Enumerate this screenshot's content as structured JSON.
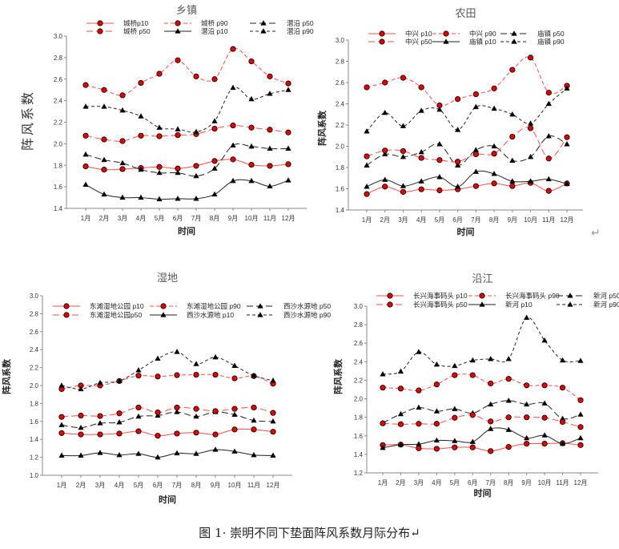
{
  "caption": "图 1· 崇明不同下垫面阵风系数月际分布↵",
  "colors": {
    "site_a": "#ff4d4d",
    "marker_a": "#e00000",
    "site_b": "#222222"
  },
  "chart_data": [
    {
      "type": "line",
      "title": "乡镇",
      "xlabel": "时间",
      "ylabel": "阵风系数",
      "categories": [
        "1月",
        "2月",
        "3月",
        "4月",
        "5月",
        "6月",
        "7月",
        "8月",
        "9月",
        "10月",
        "11月",
        "12月"
      ],
      "ylim": [
        1.4,
        3.0
      ],
      "yticks": [
        "1.4",
        "1.6",
        "1.8",
        "2.0",
        "2.2",
        "2.4",
        "2.6",
        "2.8",
        "3.0"
      ],
      "grid": false,
      "legend": "top",
      "series": [
        {
          "name": "城桥p10",
          "site": "a",
          "pct": "p10",
          "values": [
            1.79,
            1.76,
            1.765,
            1.775,
            1.785,
            1.77,
            1.795,
            1.84,
            1.855,
            1.805,
            1.795,
            1.81
          ]
        },
        {
          "name": "城桥 p90",
          "site": "a",
          "pct": "p90",
          "values": [
            2.545,
            2.5,
            2.45,
            2.565,
            2.65,
            2.775,
            2.625,
            2.6,
            2.88,
            2.765,
            2.625,
            2.56
          ]
        },
        {
          "name": "潜沿 p50",
          "site": "b",
          "pct": "p50",
          "values": [
            1.9,
            1.85,
            1.82,
            1.76,
            1.73,
            1.73,
            1.7,
            1.77,
            1.985,
            1.975,
            1.955,
            1.955
          ]
        },
        {
          "name": "城桥 p50",
          "site": "a",
          "pct": "p50",
          "values": [
            2.075,
            2.04,
            2.025,
            2.075,
            2.07,
            2.08,
            2.09,
            2.14,
            2.17,
            2.15,
            2.13,
            2.105
          ]
        },
        {
          "name": "潜沿 p10",
          "site": "b",
          "pct": "p10",
          "values": [
            1.62,
            1.53,
            1.5,
            1.5,
            1.485,
            1.49,
            1.49,
            1.53,
            1.655,
            1.655,
            1.605,
            1.66
          ]
        },
        {
          "name": "潜沿 p90",
          "site": "b",
          "pct": "p90",
          "values": [
            2.345,
            2.345,
            2.31,
            2.255,
            2.15,
            2.135,
            2.11,
            2.21,
            2.52,
            2.415,
            2.465,
            2.5
          ]
        }
      ]
    },
    {
      "type": "line",
      "title": "农田",
      "xlabel": "时间",
      "ylabel": "阵风系数",
      "categories": [
        "1月",
        "2月",
        "3月",
        "4月",
        "5月",
        "6月",
        "7月",
        "8月",
        "9月",
        "10月",
        "11月",
        "12月"
      ],
      "ylim": [
        1.4,
        3.0
      ],
      "yticks": [
        "1.4",
        "1.6",
        "1.8",
        "2.0",
        "2.2",
        "2.4",
        "2.6",
        "2.8",
        "3.0"
      ],
      "grid": false,
      "legend": "top",
      "series": [
        {
          "name": "中兴 p10",
          "site": "a",
          "pct": "p10",
          "values": [
            1.55,
            1.62,
            1.57,
            1.595,
            1.585,
            1.595,
            1.625,
            1.65,
            1.625,
            1.655,
            1.58,
            1.65
          ]
        },
        {
          "name": "中兴 p90",
          "site": "a",
          "pct": "p90",
          "values": [
            2.555,
            2.6,
            2.645,
            2.555,
            2.385,
            2.445,
            2.49,
            2.545,
            2.72,
            2.835,
            2.505,
            2.57
          ]
        },
        {
          "name": "庙镇 p50",
          "site": "b",
          "pct": "p50",
          "values": [
            1.82,
            1.925,
            1.9,
            1.945,
            2.02,
            1.82,
            1.965,
            2.0,
            1.865,
            1.9,
            2.095,
            2.02
          ]
        },
        {
          "name": "中兴 p50",
          "site": "a",
          "pct": "p50",
          "values": [
            1.905,
            1.96,
            1.955,
            1.89,
            1.87,
            1.855,
            1.925,
            1.93,
            2.09,
            2.17,
            1.885,
            2.085
          ]
        },
        {
          "name": "庙镇 p10",
          "site": "b",
          "pct": "p10",
          "values": [
            1.62,
            1.685,
            1.625,
            1.67,
            1.71,
            1.62,
            1.76,
            1.74,
            1.67,
            1.67,
            1.69,
            1.645
          ]
        },
        {
          "name": "庙镇 p90",
          "site": "b",
          "pct": "p90",
          "values": [
            2.14,
            2.315,
            2.19,
            2.335,
            2.345,
            2.155,
            2.37,
            2.355,
            2.3,
            2.215,
            2.4,
            2.545
          ]
        }
      ]
    },
    {
      "type": "line",
      "title": "湿地",
      "xlabel": "时间",
      "ylabel": "阵风系数",
      "categories": [
        "1月",
        "2月",
        "3月",
        "4月",
        "5月",
        "6月",
        "7月",
        "8月",
        "9月",
        "10月",
        "11月",
        "12月"
      ],
      "ylim": [
        1.0,
        3.0
      ],
      "yticks": [
        "1.0",
        "1.2",
        "1.4",
        "1.6",
        "1.8",
        "2.0",
        "2.2",
        "2.4",
        "2.6",
        "2.8",
        "3.0"
      ],
      "grid": false,
      "legend": "top",
      "series": [
        {
          "name": "东滩湿地公园 p10",
          "site": "a",
          "pct": "p10",
          "values": [
            1.47,
            1.455,
            1.455,
            1.465,
            1.49,
            1.44,
            1.465,
            1.475,
            1.455,
            1.51,
            1.51,
            1.485
          ]
        },
        {
          "name": "东滩湿地公园 p90",
          "site": "a",
          "pct": "p90",
          "values": [
            1.96,
            2.0,
            2.0,
            2.05,
            2.11,
            2.1,
            2.115,
            2.12,
            2.12,
            2.08,
            2.105,
            2.02
          ]
        },
        {
          "name": "西沙水源地 p50",
          "site": "b",
          "pct": "p50",
          "values": [
            1.56,
            1.53,
            1.58,
            1.59,
            1.655,
            1.665,
            1.705,
            1.655,
            1.705,
            1.675,
            1.61,
            1.6
          ]
        },
        {
          "name": "东滩湿地公园p50",
          "site": "a",
          "pct": "p50",
          "values": [
            1.65,
            1.665,
            1.66,
            1.69,
            1.755,
            1.7,
            1.755,
            1.74,
            1.715,
            1.74,
            1.755,
            1.695
          ]
        },
        {
          "name": "西沙水源地 p10",
          "site": "b",
          "pct": "p10",
          "values": [
            1.22,
            1.22,
            1.25,
            1.225,
            1.24,
            1.2,
            1.245,
            1.24,
            1.285,
            1.265,
            1.225,
            1.22
          ]
        },
        {
          "name": "西沙水源地 p90",
          "site": "b",
          "pct": "p90",
          "values": [
            2.0,
            1.96,
            2.03,
            2.05,
            2.17,
            2.3,
            2.375,
            2.24,
            2.315,
            2.22,
            2.11,
            2.055
          ]
        }
      ]
    },
    {
      "type": "line",
      "title": "沿江",
      "xlabel": "时间",
      "ylabel": "阵风系数",
      "categories": [
        "1月",
        "2月",
        "3月",
        "4月",
        "5月",
        "6月",
        "7月",
        "8月",
        "9月",
        "10月",
        "11月",
        "12月"
      ],
      "ylim": [
        1.2,
        3.0
      ],
      "yticks": [
        "1.2",
        "1.4",
        "1.6",
        "1.8",
        "2.0",
        "2.2",
        "2.4",
        "2.6",
        "2.8",
        "3.0"
      ],
      "grid": false,
      "legend": "top",
      "series": [
        {
          "name": "长兴海事码头 p10",
          "site": "a",
          "pct": "p10",
          "values": [
            1.5,
            1.505,
            1.465,
            1.46,
            1.475,
            1.475,
            1.435,
            1.48,
            1.515,
            1.515,
            1.52,
            1.5
          ]
        },
        {
          "name": "长兴海事码头 p90",
          "site": "a",
          "pct": "p90",
          "values": [
            2.12,
            2.11,
            2.09,
            2.155,
            2.255,
            2.255,
            2.165,
            2.215,
            2.145,
            2.145,
            2.12,
            1.985
          ]
        },
        {
          "name": "新河 p50",
          "site": "b",
          "pct": "p50",
          "values": [
            1.74,
            1.835,
            1.905,
            1.865,
            1.89,
            1.845,
            1.94,
            1.98,
            1.94,
            1.95,
            1.785,
            1.83
          ]
        },
        {
          "name": "长兴海事码头 p50",
          "site": "a",
          "pct": "p50",
          "values": [
            1.735,
            1.725,
            1.73,
            1.73,
            1.795,
            1.825,
            1.755,
            1.8,
            1.8,
            1.795,
            1.75,
            1.695
          ]
        },
        {
          "name": "新河 p10",
          "site": "b",
          "pct": "p10",
          "values": [
            1.47,
            1.505,
            1.51,
            1.55,
            1.545,
            1.535,
            1.675,
            1.665,
            1.575,
            1.605,
            1.515,
            1.575
          ]
        },
        {
          "name": "新河 p90",
          "site": "b",
          "pct": "p90",
          "values": [
            2.265,
            2.295,
            2.505,
            2.37,
            2.355,
            2.415,
            2.43,
            2.43,
            2.875,
            2.63,
            2.415,
            2.41
          ]
        }
      ]
    }
  ]
}
